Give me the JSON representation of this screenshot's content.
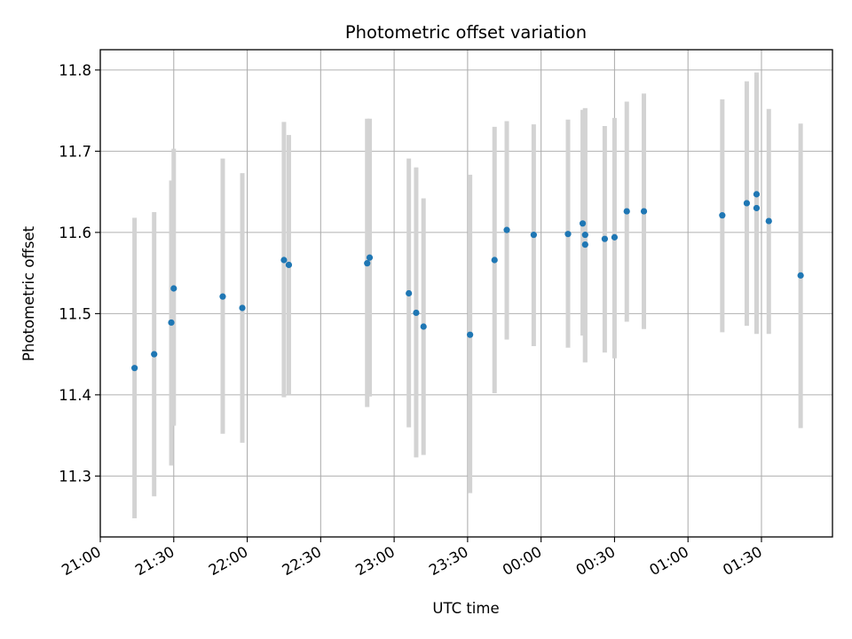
{
  "chart_data": {
    "type": "scatter",
    "title": "Photometric offset variation",
    "xlabel": "UTC time",
    "ylabel": "Photometric offset",
    "x_is_time": true,
    "x_start": "21:00",
    "xlim": [
      "21:00",
      "01:59"
    ],
    "ylim": [
      11.225,
      11.825
    ],
    "x_ticks": [
      "21:00",
      "21:30",
      "22:00",
      "22:30",
      "23:00",
      "23:30",
      "00:00",
      "00:30",
      "01:00",
      "01:30"
    ],
    "y_ticks": [
      11.3,
      11.4,
      11.5,
      11.6,
      11.7,
      11.8
    ],
    "y_tick_labels": [
      "11.3",
      "11.4",
      "11.5",
      "11.6",
      "11.7",
      "11.8"
    ],
    "grid": true,
    "point_color": "#1f77b4",
    "errorbar_color": "#d3d3d3",
    "points": [
      {
        "t": "21:14",
        "y": 11.433,
        "lo": 11.248,
        "hi": 11.618
      },
      {
        "t": "21:22",
        "y": 11.45,
        "lo": 11.275,
        "hi": 11.625
      },
      {
        "t": "21:29",
        "y": 11.489,
        "lo": 11.313,
        "hi": 11.664
      },
      {
        "t": "21:30",
        "y": 11.531,
        "lo": 11.362,
        "hi": 11.703
      },
      {
        "t": "21:50",
        "y": 11.521,
        "lo": 11.352,
        "hi": 11.691
      },
      {
        "t": "21:58",
        "y": 11.507,
        "lo": 11.341,
        "hi": 11.673
      },
      {
        "t": "22:15",
        "y": 11.566,
        "lo": 11.397,
        "hi": 11.736
      },
      {
        "t": "22:17",
        "y": 11.56,
        "lo": 11.4,
        "hi": 11.72
      },
      {
        "t": "22:49",
        "y": 11.562,
        "lo": 11.385,
        "hi": 11.74
      },
      {
        "t": "22:50",
        "y": 11.569,
        "lo": 11.398,
        "hi": 11.74
      },
      {
        "t": "23:06",
        "y": 11.525,
        "lo": 11.36,
        "hi": 11.691
      },
      {
        "t": "23:09",
        "y": 11.501,
        "lo": 11.323,
        "hi": 11.68
      },
      {
        "t": "23:12",
        "y": 11.484,
        "lo": 11.326,
        "hi": 11.642
      },
      {
        "t": "23:31",
        "y": 11.474,
        "lo": 11.279,
        "hi": 11.671
      },
      {
        "t": "23:41",
        "y": 11.566,
        "lo": 11.402,
        "hi": 11.73
      },
      {
        "t": "23:46",
        "y": 11.603,
        "lo": 11.468,
        "hi": 11.737
      },
      {
        "t": "23:57",
        "y": 11.597,
        "lo": 11.46,
        "hi": 11.733
      },
      {
        "t": "00:11",
        "y": 11.598,
        "lo": 11.458,
        "hi": 11.739
      },
      {
        "t": "00:17",
        "y": 11.611,
        "lo": 11.473,
        "hi": 11.751
      },
      {
        "t": "00:18",
        "y": 11.585,
        "lo": 11.44,
        "hi": 11.753
      },
      {
        "t": "00:18",
        "y": 11.597,
        "lo": 11.44,
        "hi": 11.753
      },
      {
        "t": "00:26",
        "y": 11.592,
        "lo": 11.452,
        "hi": 11.731
      },
      {
        "t": "00:30",
        "y": 11.594,
        "lo": 11.445,
        "hi": 11.741
      },
      {
        "t": "00:35",
        "y": 11.626,
        "lo": 11.49,
        "hi": 11.761
      },
      {
        "t": "00:42",
        "y": 11.626,
        "lo": 11.481,
        "hi": 11.771
      },
      {
        "t": "01:14",
        "y": 11.621,
        "lo": 11.477,
        "hi": 11.764
      },
      {
        "t": "01:24",
        "y": 11.636,
        "lo": 11.485,
        "hi": 11.786
      },
      {
        "t": "01:28",
        "y": 11.63,
        "lo": 11.475,
        "hi": 11.784
      },
      {
        "t": "01:28",
        "y": 11.647,
        "lo": 11.499,
        "hi": 11.797
      },
      {
        "t": "01:33",
        "y": 11.614,
        "lo": 11.475,
        "hi": 11.752
      },
      {
        "t": "01:46",
        "y": 11.547,
        "lo": 11.359,
        "hi": 11.734
      }
    ]
  }
}
